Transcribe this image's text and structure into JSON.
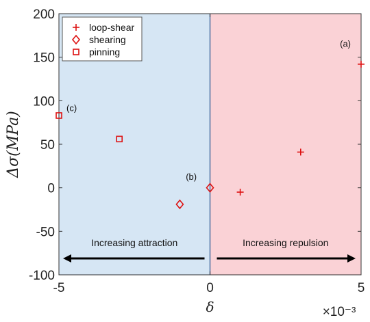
{
  "chart_data": {
    "type": "scatter",
    "xlabel": "δ",
    "ylabel": "Δσ(MPa)",
    "x_exponent": "×10⁻³",
    "xlim": [
      -5,
      5
    ],
    "ylim": [
      -100,
      200
    ],
    "xticks": [
      {
        "value": -5,
        "label": "-5"
      },
      {
        "value": 0,
        "label": "0"
      },
      {
        "value": 5,
        "label": "5"
      }
    ],
    "yticks": [
      {
        "value": -100,
        "label": "-100"
      },
      {
        "value": -50,
        "label": "-50"
      },
      {
        "value": 0,
        "label": "0"
      },
      {
        "value": 50,
        "label": "50"
      },
      {
        "value": 100,
        "label": "100"
      },
      {
        "value": 150,
        "label": "150"
      },
      {
        "value": 200,
        "label": "200"
      }
    ],
    "series": [
      {
        "name": "loop-shear",
        "marker": "plus",
        "color": "#dd1111",
        "points": [
          {
            "x": 1,
            "y": -5
          },
          {
            "x": 3,
            "y": 41
          },
          {
            "x": 5,
            "y": 142
          }
        ]
      },
      {
        "name": "shearing",
        "marker": "diamond",
        "color": "#dd1111",
        "points": [
          {
            "x": -1,
            "y": -19
          },
          {
            "x": 0,
            "y": 0
          }
        ]
      },
      {
        "name": "pinning",
        "marker": "square",
        "color": "#dd1111",
        "points": [
          {
            "x": -5,
            "y": 83
          },
          {
            "x": -3,
            "y": 56
          }
        ]
      }
    ],
    "regions": [
      {
        "from": -5,
        "to": 0,
        "color": "#d6e6f4",
        "label": "Increasing attraction",
        "arrow": "left"
      },
      {
        "from": 0,
        "to": 5,
        "color": "#fad2d6",
        "label": "Increasing repulsion",
        "arrow": "right"
      }
    ],
    "annotations": [
      {
        "text": "(a)",
        "x": 4.3,
        "y": 162
      },
      {
        "text": "(b)",
        "x": -0.8,
        "y": 9
      },
      {
        "text": "(c)",
        "x": -4.75,
        "y": 88
      }
    ],
    "legend_position": "top-left",
    "grid": false
  }
}
